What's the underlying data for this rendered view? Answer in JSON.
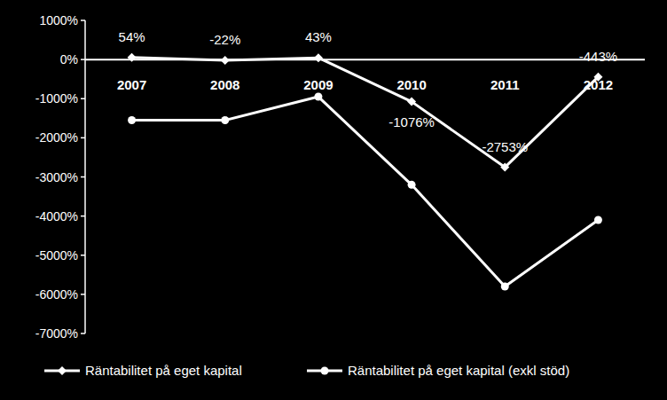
{
  "chart_data": {
    "type": "line",
    "categories": [
      "2007",
      "2008",
      "2009",
      "2010",
      "2011",
      "2012"
    ],
    "ylim": [
      -7000,
      1000
    ],
    "yticks": [
      {
        "value": 1000,
        "label": "1000%"
      },
      {
        "value": 0,
        "label": "0%"
      },
      {
        "value": -1000,
        "label": "-1000%"
      },
      {
        "value": -2000,
        "label": "-2000%"
      },
      {
        "value": -3000,
        "label": "-3000%"
      },
      {
        "value": -4000,
        "label": "-4000%"
      },
      {
        "value": -5000,
        "label": "-5000%"
      },
      {
        "value": -6000,
        "label": "-6000%"
      },
      {
        "value": -7000,
        "label": "-7000%"
      }
    ],
    "grid": false,
    "legend": "bottom",
    "series": [
      {
        "name": "Räntabilitet på eget kapital",
        "color": "#ffffff",
        "marker": "diamond",
        "data_labels": true,
        "values": [
          54,
          -22,
          43,
          -1076,
          -2753,
          -443
        ],
        "value_labels": [
          "54%",
          "-22%",
          "43%",
          "-1076%",
          "-2753%",
          "-443%"
        ]
      },
      {
        "name": "Räntabilitet på eget kapital (exkl stöd)",
        "color": "#ffffff",
        "marker": "circle",
        "values": [
          -1550,
          -1550,
          -950,
          -3200,
          -5800,
          -4100
        ]
      }
    ]
  }
}
